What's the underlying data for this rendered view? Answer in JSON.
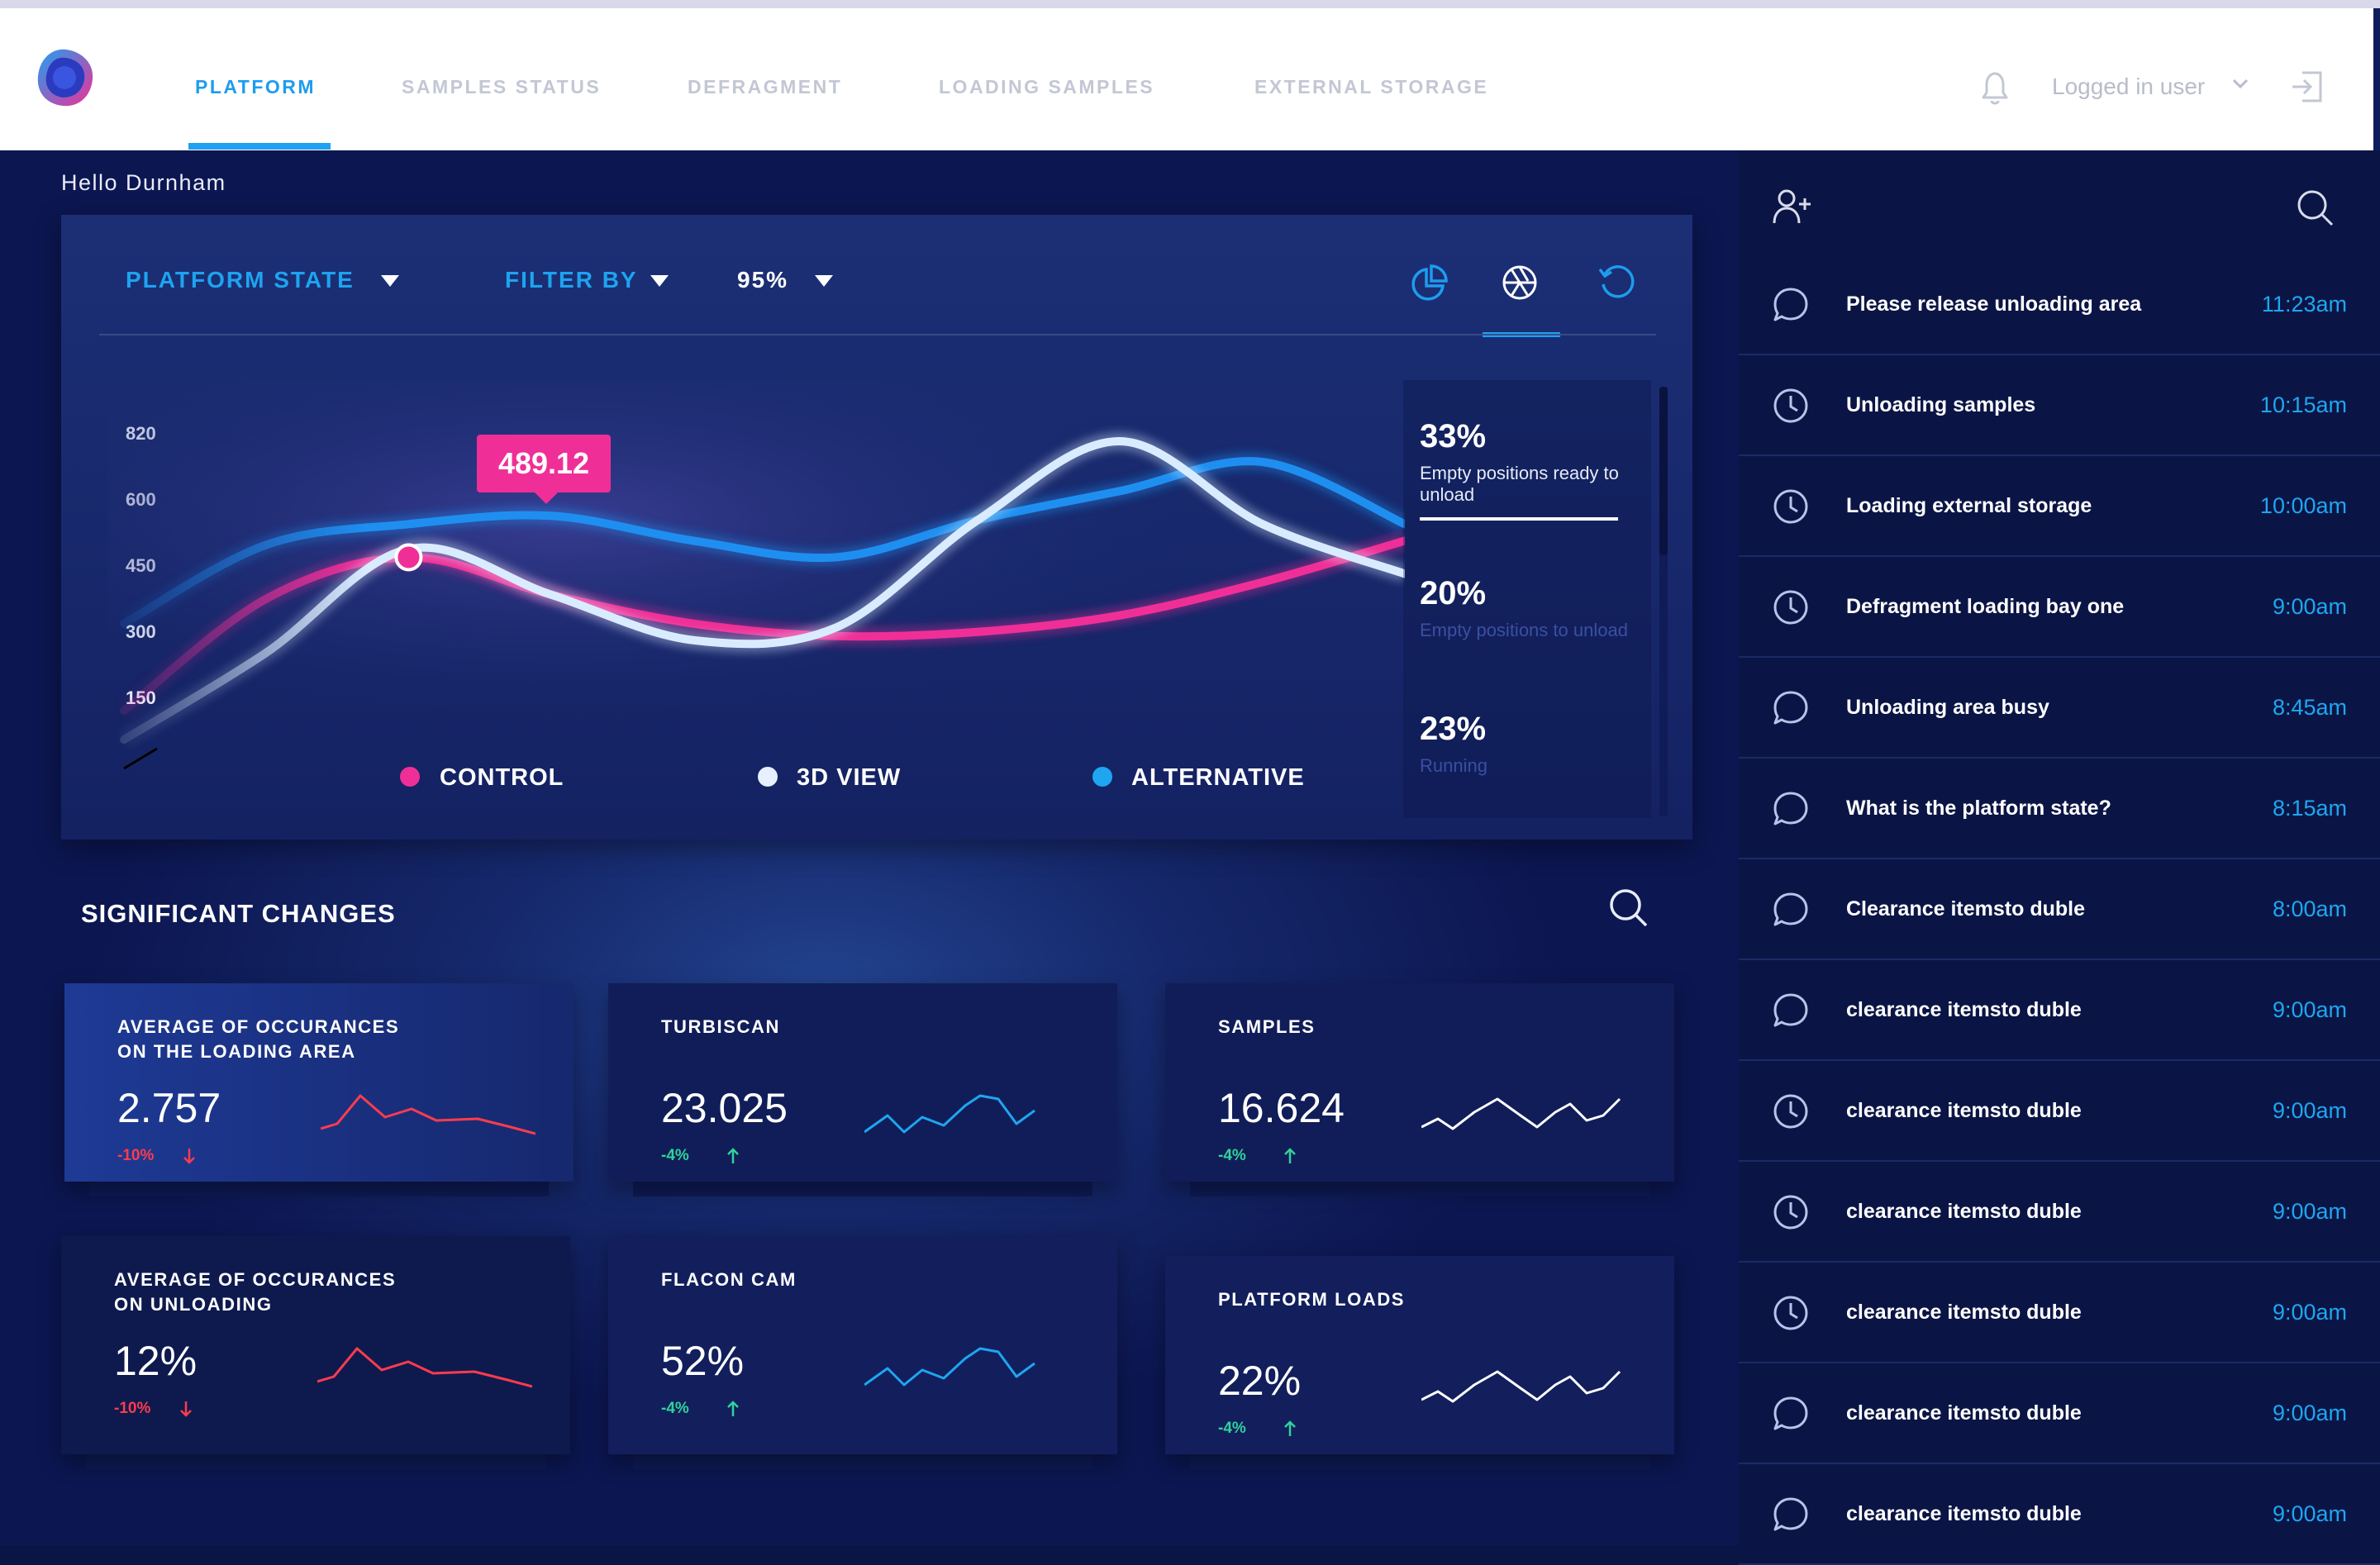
{
  "nav": {
    "tabs": [
      {
        "label": "PLATFORM",
        "active": true
      },
      {
        "label": "SAMPLES STATUS",
        "active": false
      },
      {
        "label": "DEFRAGMENT",
        "active": false
      },
      {
        "label": "LOADING SAMPLES",
        "active": false
      },
      {
        "label": "EXTERNAL STORAGE",
        "active": false
      }
    ],
    "user_label": "Logged in user",
    "icons": [
      "bell-icon",
      "chevron-down-icon",
      "logout-icon"
    ]
  },
  "greeting": "Hello Durnham",
  "chart_panel": {
    "dropdown_state": "PLATFORM  STATE",
    "dropdown_filter": "FILTER BY",
    "dropdown_percent": "95%",
    "view_icons": [
      "pie-chart-icon",
      "aperture-icon",
      "refresh-icon"
    ],
    "active_view": "aperture-icon",
    "tooltip_value": "489.12",
    "stats": [
      {
        "value": "33%",
        "label": "Empty positions ready to unload",
        "highlight": true
      },
      {
        "value": "20%",
        "label": "Empty positions to unload",
        "highlight": false
      },
      {
        "value": "23%",
        "label": "Running",
        "highlight": false
      }
    ]
  },
  "chart_data": {
    "type": "line",
    "title": "",
    "xlabel": "",
    "ylabel": "",
    "y_ticks": [
      "820",
      "600",
      "450",
      "300",
      "150"
    ],
    "grid": false,
    "legend_position": "bottom",
    "series": [
      {
        "name": "CONTROL",
        "color": "#ef2f97",
        "values": [
          150,
          420,
          520,
          430,
          360,
          330,
          340,
          380,
          460,
          560
        ]
      },
      {
        "name": "3D VIEW",
        "color": "#d9ecff",
        "values": [
          80,
          290,
          540,
          430,
          320,
          350,
          610,
          800,
          600,
          480
        ]
      },
      {
        "name": "ALTERNATIVE",
        "color": "#1e8ff0",
        "values": [
          360,
          550,
          600,
          620,
          560,
          520,
          610,
          680,
          750,
          600
        ]
      }
    ],
    "highlight": {
      "series": "CONTROL",
      "value": 489.12
    }
  },
  "significant": {
    "title": "SIGNIFICANT CHANGES",
    "cards": [
      {
        "title": "AVERAGE OF OCCURANCES\nON THE LOADING AREA",
        "value": "2.757",
        "delta": "-10%",
        "dir": "down",
        "spark": "red"
      },
      {
        "title": "TURBISCAN",
        "value": "23.025",
        "delta": "-4%",
        "dir": "up",
        "spark": "blue"
      },
      {
        "title": "SAMPLES",
        "value": "16.624",
        "delta": "-4%",
        "dir": "up",
        "spark": "white"
      },
      {
        "title": "AVERAGE OF OCCURANCES\nON UNLOADING",
        "value": "12%",
        "delta": "-10%",
        "dir": "down",
        "spark": "red"
      },
      {
        "title": "FLACON CAM",
        "value": "52%",
        "delta": "-4%",
        "dir": "up",
        "spark": "blue"
      },
      {
        "title": "PLATFORM LOADS",
        "value": "22%",
        "delta": "-4%",
        "dir": "up",
        "spark": "white"
      }
    ]
  },
  "right_panel": {
    "icons": [
      "add-user-icon",
      "search-icon"
    ],
    "items": [
      {
        "icon": "chat-icon",
        "text": "Please release unloading area",
        "time": "11:23am"
      },
      {
        "icon": "clock-icon",
        "text": "Unloading samples",
        "time": "10:15am"
      },
      {
        "icon": "clock-icon",
        "text": "Loading external storage",
        "time": "10:00am"
      },
      {
        "icon": "clock-icon",
        "text": "Defragment loading bay one",
        "time": "9:00am"
      },
      {
        "icon": "chat-icon",
        "text": "Unloading area busy",
        "time": "8:45am"
      },
      {
        "icon": "chat-icon",
        "text": "What is the platform state?",
        "time": "8:15am"
      },
      {
        "icon": "chat-icon",
        "text": "Clearance  itemsto duble",
        "time": "8:00am"
      },
      {
        "icon": "chat-icon",
        "text": "clearance  itemsto duble",
        "time": "9:00am"
      },
      {
        "icon": "clock-icon",
        "text": "clearance  itemsto duble",
        "time": "9:00am"
      },
      {
        "icon": "clock-icon",
        "text": "clearance  itemsto duble",
        "time": "9:00am"
      },
      {
        "icon": "clock-icon",
        "text": "clearance  itemsto duble",
        "time": "9:00am"
      },
      {
        "icon": "chat-icon",
        "text": "clearance  itemsto duble",
        "time": "9:00am"
      },
      {
        "icon": "chat-icon",
        "text": "clearance  itemsto duble",
        "time": "9:00am"
      }
    ]
  },
  "colors": {
    "accent": "#1ea1f2",
    "pink": "#ef2f97",
    "panel": "#0b1545",
    "down": "#ff3b4e",
    "up": "#2fd39a"
  }
}
